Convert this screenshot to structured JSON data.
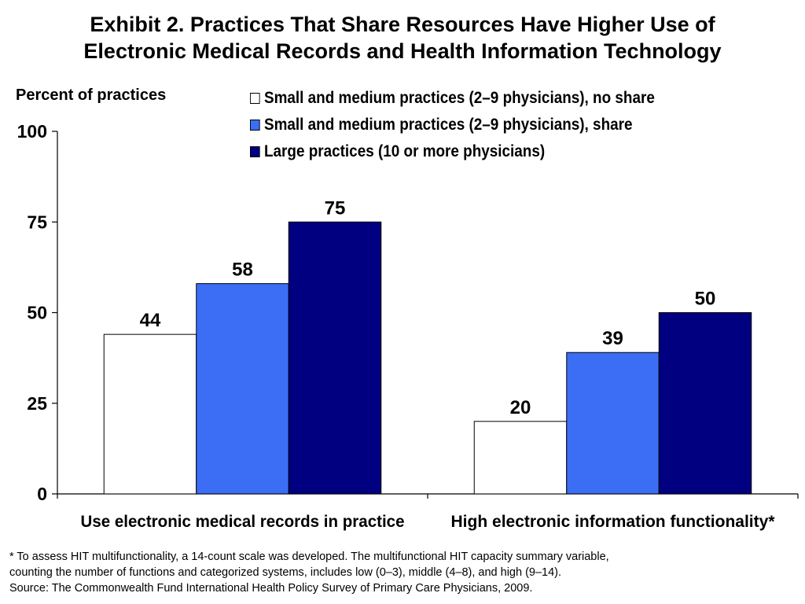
{
  "title_line1": "Exhibit 2. Practices That Share Resources Have Higher Use of",
  "title_line2": "Electronic Medical Records and Health Information Technology",
  "footnote_line1": "* To assess HIT multifunctionality, a 14-count scale was developed. The multifunctional HIT capacity summary variable,",
  "footnote_line2": "counting the number of functions and categorized systems, includes low (0–3), middle (4–8), and high (9–14).",
  "footnote_line3": "Source: The Commonwealth Fund International Health Policy Survey of Primary Care Physicians, 2009.",
  "chart_data": {
    "type": "bar",
    "ylabel": "Percent of practices",
    "ylim": [
      0,
      100
    ],
    "yticks": [
      0,
      25,
      50,
      75,
      100
    ],
    "grid": false,
    "legend_position": "top-right",
    "categories": [
      "Use electronic medical records in practice",
      "High electronic information functionality*"
    ],
    "series": [
      {
        "name": "Small and medium practices (2–9 physicians), no share",
        "color": "#ffffff",
        "values": [
          44,
          20
        ]
      },
      {
        "name": "Small and medium practices (2–9 physicians), share",
        "color": "#3b6ef5",
        "values": [
          58,
          39
        ]
      },
      {
        "name": "Large practices (10 or more physicians)",
        "color": "#000080",
        "values": [
          75,
          50
        ]
      }
    ],
    "data_labels": true
  }
}
